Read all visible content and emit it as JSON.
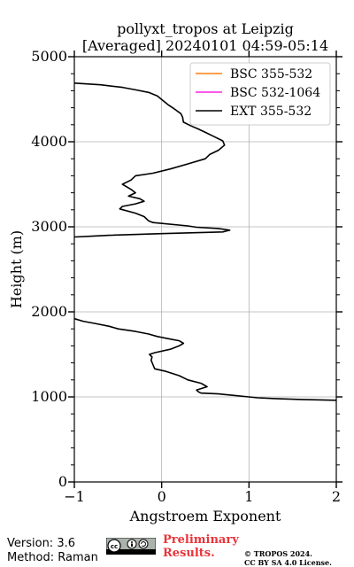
{
  "chart_data": {
    "type": "line",
    "title": "pollyxt_tropos at Leipzig",
    "subtitle": "[Averaged] 20240101 04:59-05:14",
    "xlabel": "Angstroem Exponent",
    "ylabel": "Height (m)",
    "xlim": [
      -1,
      2
    ],
    "ylim": [
      0,
      5000
    ],
    "xticks": [
      "−1",
      "0",
      "1",
      "2"
    ],
    "yticks": [
      "0",
      "1000",
      "2000",
      "3000",
      "4000",
      "5000"
    ],
    "grid": true,
    "legend_position": "top-right",
    "series": [
      {
        "name": "BSC 355-532",
        "color": "#ff7f0e",
        "points": []
      },
      {
        "name": "BSC 532-1064",
        "color": "#ff22e0",
        "points": []
      },
      {
        "name": "EXT 355-532",
        "color": "#000000",
        "segments": [
          [
            [
              2.0,
              960
            ],
            [
              1.6,
              970
            ],
            [
              1.3,
              980
            ],
            [
              1.1,
              990
            ],
            [
              1.0,
              1000
            ],
            [
              0.8,
              1020
            ],
            [
              0.65,
              1035
            ],
            [
              0.45,
              1045
            ],
            [
              0.42,
              1060
            ],
            [
              0.4,
              1080
            ],
            [
              0.52,
              1120
            ],
            [
              0.45,
              1160
            ],
            [
              0.3,
              1200
            ],
            [
              0.2,
              1250
            ],
            [
              0.05,
              1300
            ],
            [
              -0.08,
              1330
            ],
            [
              -0.1,
              1380
            ],
            [
              -0.12,
              1430
            ],
            [
              -0.11,
              1470
            ],
            [
              -0.14,
              1500
            ],
            [
              -0.08,
              1520
            ],
            [
              0.1,
              1560
            ],
            [
              0.2,
              1600
            ],
            [
              0.25,
              1630
            ],
            [
              0.2,
              1660
            ],
            [
              0.05,
              1690
            ],
            [
              -0.05,
              1710
            ],
            [
              -0.15,
              1740
            ],
            [
              -0.3,
              1770
            ],
            [
              -0.5,
              1800
            ],
            [
              -0.6,
              1830
            ],
            [
              -0.75,
              1860
            ],
            [
              -0.9,
              1890
            ],
            [
              -1.0,
              1920
            ]
          ],
          [
            [
              -1.0,
              2880
            ],
            [
              -0.8,
              2890
            ],
            [
              -0.6,
              2900
            ],
            [
              0.0,
              2920
            ],
            [
              0.7,
              2940
            ],
            [
              0.78,
              2960
            ],
            [
              0.72,
              2970
            ],
            [
              0.65,
              2980
            ],
            [
              0.4,
              2995
            ],
            [
              0.3,
              3010
            ],
            [
              -0.1,
              3050
            ],
            [
              -0.15,
              3070
            ],
            [
              -0.2,
              3120
            ],
            [
              -0.3,
              3160
            ],
            [
              -0.48,
              3210
            ],
            [
              -0.45,
              3240
            ],
            [
              -0.3,
              3270
            ],
            [
              -0.2,
              3300
            ],
            [
              -0.25,
              3330
            ],
            [
              -0.38,
              3360
            ],
            [
              -0.3,
              3400
            ],
            [
              -0.35,
              3440
            ],
            [
              -0.45,
              3500
            ],
            [
              -0.35,
              3550
            ],
            [
              -0.3,
              3600
            ],
            [
              -0.1,
              3630
            ],
            [
              0.1,
              3680
            ],
            [
              0.3,
              3740
            ],
            [
              0.5,
              3800
            ],
            [
              0.55,
              3850
            ],
            [
              0.65,
              3900
            ],
            [
              0.72,
              3960
            ],
            [
              0.7,
              4010
            ],
            [
              0.6,
              4060
            ],
            [
              0.5,
              4110
            ],
            [
              0.42,
              4150
            ],
            [
              0.33,
              4190
            ],
            [
              0.25,
              4230
            ],
            [
              0.24,
              4290
            ],
            [
              0.22,
              4330
            ],
            [
              0.14,
              4390
            ],
            [
              0.08,
              4430
            ],
            [
              0.02,
              4480
            ],
            [
              -0.05,
              4540
            ],
            [
              -0.15,
              4580
            ],
            [
              -0.3,
              4610
            ],
            [
              -0.45,
              4640
            ],
            [
              -0.7,
              4670
            ],
            [
              -1.0,
              4690
            ]
          ]
        ]
      }
    ]
  },
  "footer": {
    "version": "Version: 3.6",
    "method": "Method: Raman",
    "cc_label": "cc",
    "preliminary_line1": "Preliminary",
    "preliminary_line2": "Results.",
    "copyright_line1": "© TROPOS 2024.",
    "copyright_line2": "CC BY SA 4.0 License."
  }
}
